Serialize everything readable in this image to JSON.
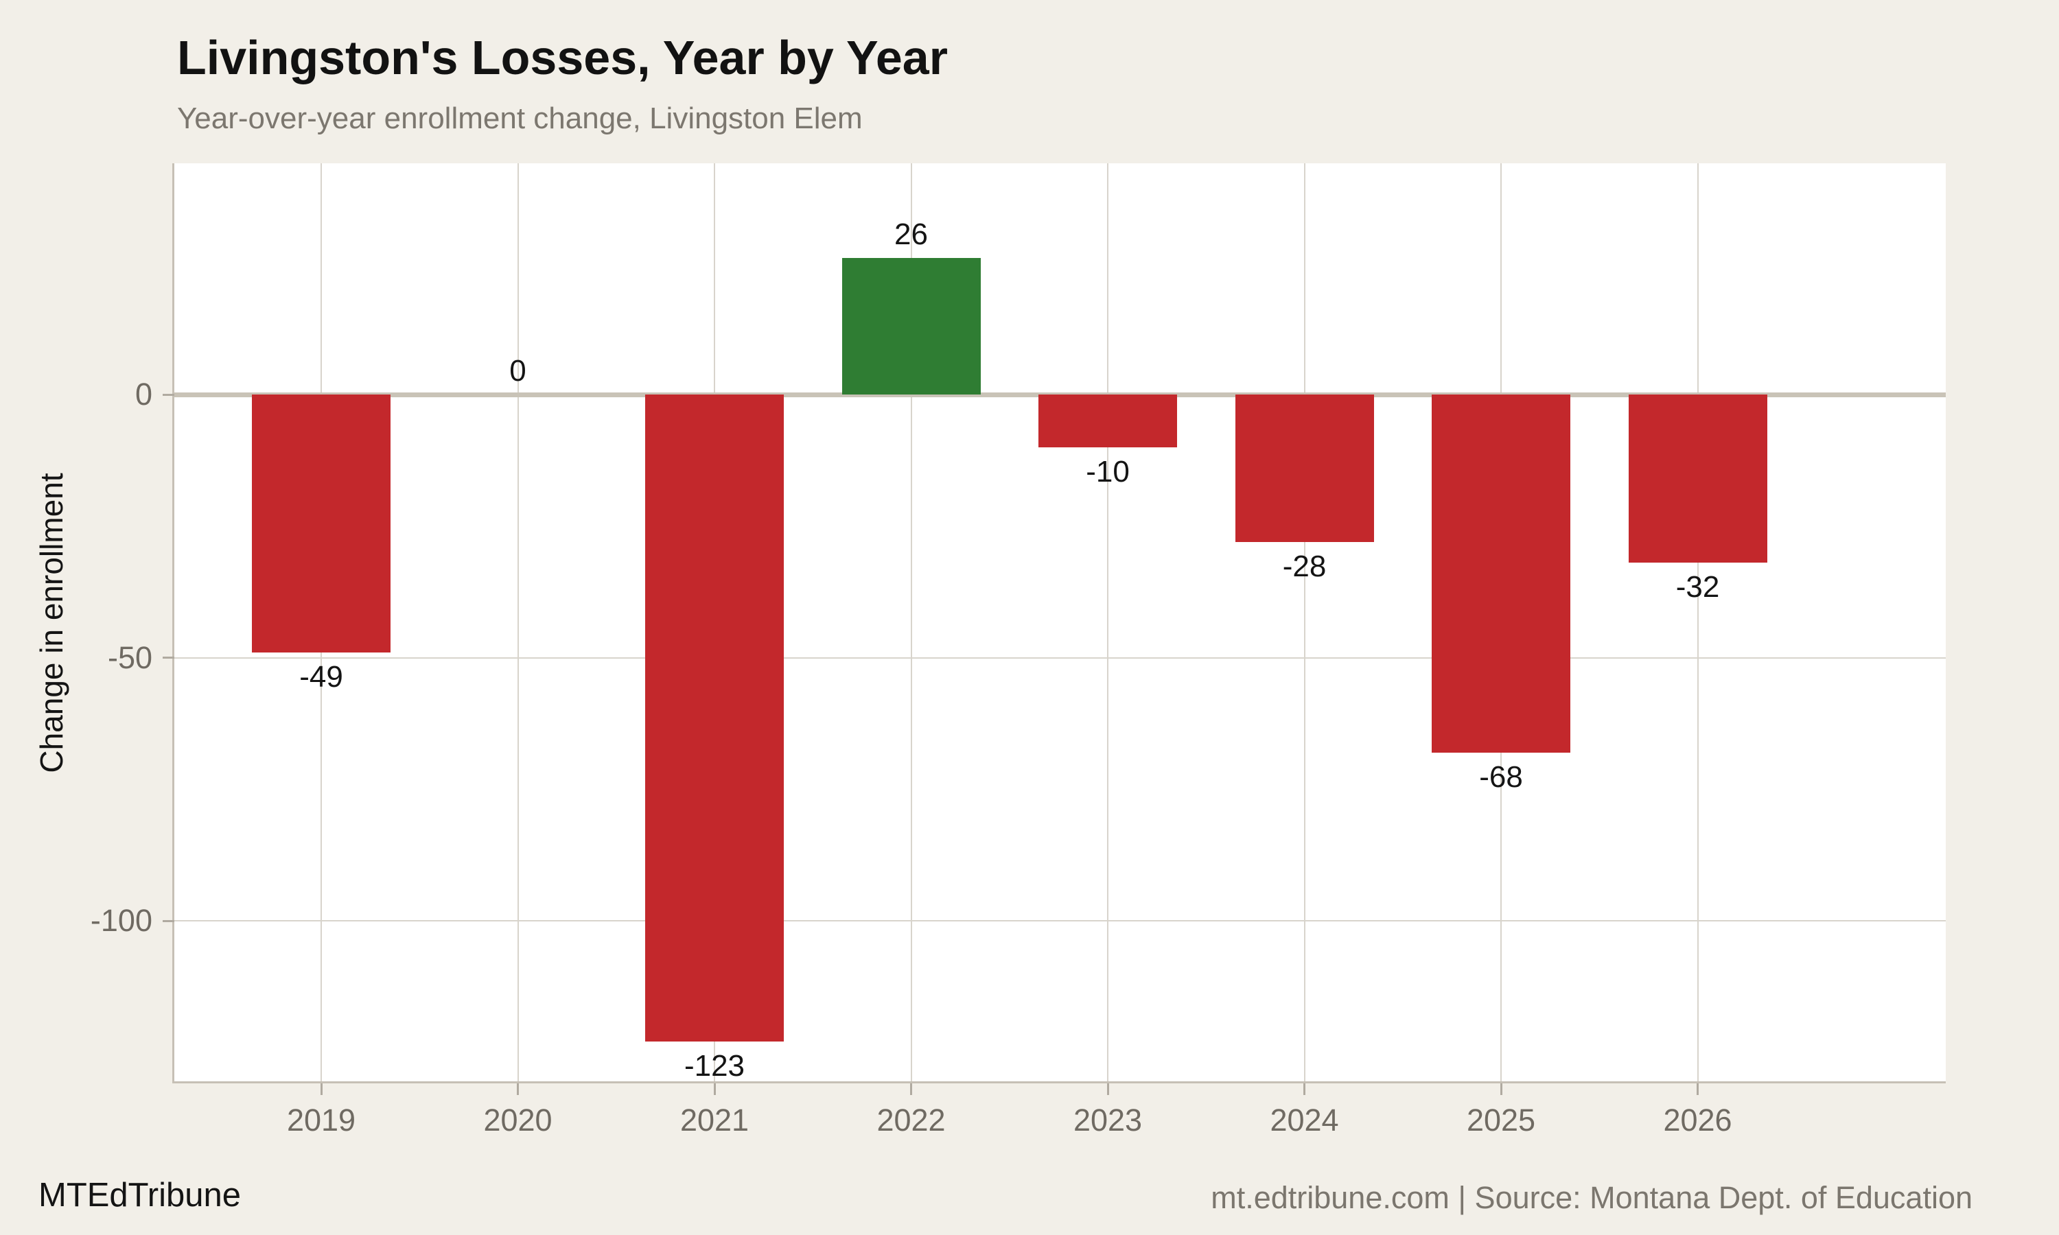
{
  "header": {
    "title": "Livingston's Losses, Year by Year",
    "subtitle": "Year-over-year enrollment change, Livingston Elem"
  },
  "footer": {
    "brand": "MTEdTribune",
    "source": "mt.edtribune.com | Source: Montana Dept. of Education"
  },
  "chart_data": {
    "type": "bar",
    "title": "Livingston's Losses, Year by Year",
    "subtitle": "Year-over-year enrollment change, Livingston Elem",
    "categories": [
      "2019",
      "2020",
      "2021",
      "2022",
      "2023",
      "2024",
      "2025",
      "2026"
    ],
    "values": [
      -49,
      0,
      -123,
      26,
      -10,
      -28,
      -68,
      -32
    ],
    "bar_labels": [
      "-49",
      "0",
      "-123",
      "26",
      "-10",
      "-28",
      "-68",
      "-32"
    ],
    "xlabel": "",
    "ylabel": "Change in enrollment",
    "ylim": [
      -130,
      44
    ],
    "yticks": [
      0,
      -50,
      -100
    ],
    "ytick_labels": [
      "0",
      "-50",
      "-100"
    ],
    "grid": true,
    "legend": "none",
    "colors": {
      "negative_bar": "#c3282c",
      "positive_bar": "#2f7d33",
      "page_background": "#f2efe8",
      "plot_background": "#ffffff",
      "gridline": "#d8d4cc",
      "zero_line": "#c9c3b7",
      "axis_line": "#c6c0b5",
      "tick_label": "#6f6a62",
      "value_label": "#141414"
    }
  }
}
